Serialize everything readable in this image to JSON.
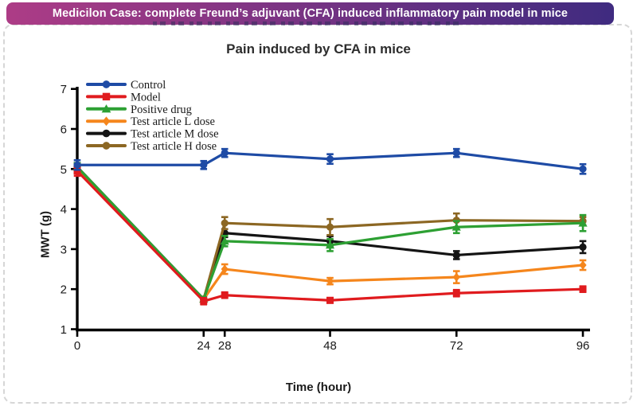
{
  "banner": {
    "text": "Medicilon Case: complete Freund’s adjuvant (CFA) induced inflammatory pain model in mice",
    "gradient_from": "#ad3c86",
    "gradient_to": "#3f2b80",
    "text_color": "#ffffff"
  },
  "chart_data": {
    "type": "line",
    "title": "Pain induced by CFA in mice",
    "xlabel": "Time (hour)",
    "ylabel": "MWT (g)",
    "x": [
      0,
      24,
      28,
      48,
      72,
      96
    ],
    "xticks": [
      "0",
      "24",
      "28",
      "48",
      "72",
      "96"
    ],
    "yticks": [
      "1",
      "2",
      "3",
      "4",
      "5",
      "6",
      "7"
    ],
    "xlim": [
      0,
      100
    ],
    "ylim": [
      1,
      7
    ],
    "grid": false,
    "legend_position": "top-left-inside",
    "axis_color": "#000000",
    "series": [
      {
        "name": "Control",
        "color": "#1e4ba5",
        "marker": "circle",
        "values": [
          5.1,
          5.1,
          5.4,
          5.25,
          5.4,
          5.0
        ],
        "errors": [
          0.12,
          0.1,
          0.1,
          0.12,
          0.1,
          0.12
        ]
      },
      {
        "name": "Model",
        "color": "#e01b1e",
        "marker": "square",
        "values": [
          4.95,
          1.7,
          1.85,
          1.72,
          1.9,
          2.0
        ],
        "errors": [
          0.12,
          0.08,
          0.07,
          0.06,
          0.08,
          0.07
        ]
      },
      {
        "name": "Positive drug",
        "color": "#2da033",
        "marker": "triangle",
        "values": [
          5.05,
          1.75,
          3.2,
          3.1,
          3.55,
          3.65
        ],
        "errors": [
          0.1,
          0.05,
          0.13,
          0.15,
          0.15,
          0.2
        ]
      },
      {
        "name": "Test article L dose",
        "color": "#f5861c",
        "marker": "diamond",
        "values": [
          5.0,
          1.75,
          2.5,
          2.2,
          2.3,
          2.6
        ],
        "errors": [
          0.1,
          0.05,
          0.12,
          0.08,
          0.15,
          0.12
        ]
      },
      {
        "name": "Test article M dose",
        "color": "#141414",
        "marker": "circle",
        "values": [
          5.05,
          1.75,
          3.4,
          3.2,
          2.85,
          3.05
        ],
        "errors": [
          0.1,
          0.05,
          0.1,
          0.12,
          0.1,
          0.15
        ]
      },
      {
        "name": "Test article H dose",
        "color": "#8c6723",
        "marker": "circle",
        "values": [
          5.0,
          1.75,
          3.65,
          3.55,
          3.72,
          3.7
        ],
        "errors": [
          0.1,
          0.05,
          0.15,
          0.2,
          0.17,
          0.1
        ]
      }
    ]
  }
}
